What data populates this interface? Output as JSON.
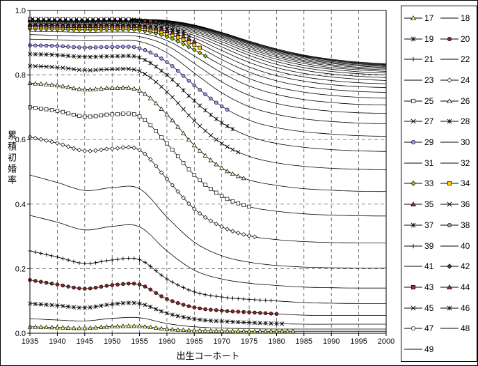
{
  "chart_data": {
    "type": "line",
    "title": "",
    "xlabel": "出生コーホート",
    "ylabel": "累積初婚率",
    "xlim": [
      1935,
      2000
    ],
    "ylim": [
      0,
      1
    ],
    "x_ticks": [
      1935,
      1940,
      1945,
      1950,
      1955,
      1960,
      1965,
      1970,
      1975,
      1980,
      1985,
      1990,
      1995,
      2000
    ],
    "y_ticks": [
      [
        "1.0",
        1.0
      ],
      [
        "0.8",
        0.8
      ],
      [
        "0.6",
        0.6
      ],
      [
        "0.4",
        0.4
      ],
      [
        "0.2",
        0.2
      ],
      [
        "0.0",
        0.0
      ]
    ],
    "grid": "dashed-both",
    "legend_position": "right",
    "line_color": "#000000",
    "cohorts": [
      1935,
      1940,
      1945,
      1950,
      1955,
      1960,
      1965,
      1970,
      1975,
      1980,
      1985,
      1990,
      1995,
      2000
    ],
    "series": [
      {
        "age": 17,
        "label": "17",
        "marker": {
          "shape": "triangle",
          "fill": "#ffff66"
        },
        "observed_until": 1983,
        "values": [
          0.02,
          0.018,
          0.016,
          0.021,
          0.022,
          0.013,
          0.009,
          0.007,
          0.006,
          0.006,
          0.006,
          0.006,
          0.006,
          0.006
        ]
      },
      {
        "age": 18,
        "label": "18",
        "marker": null,
        "observed_until": 1982,
        "values": [
          0.045,
          0.041,
          0.038,
          0.046,
          0.048,
          0.03,
          0.02,
          0.016,
          0.014,
          0.013,
          0.013,
          0.013,
          0.013,
          0.013
        ]
      },
      {
        "age": 19,
        "label": "19",
        "marker": {
          "shape": "star",
          "fill": "#000000"
        },
        "observed_until": 1981,
        "values": [
          0.092,
          0.086,
          0.079,
          0.09,
          0.092,
          0.062,
          0.044,
          0.037,
          0.033,
          0.03,
          0.028,
          0.028,
          0.028,
          0.028
        ]
      },
      {
        "age": 20,
        "label": "20",
        "marker": {
          "shape": "circle",
          "fill": "#8b2323"
        },
        "observed_until": 1980,
        "values": [
          0.165,
          0.151,
          0.138,
          0.149,
          0.151,
          0.106,
          0.08,
          0.07,
          0.065,
          0.06,
          0.056,
          0.055,
          0.055,
          0.055
        ]
      },
      {
        "age": 21,
        "label": "21",
        "marker": {
          "shape": "plus",
          "fill": "#000000"
        },
        "observed_until": 1979,
        "values": [
          0.255,
          0.236,
          0.216,
          0.227,
          0.228,
          0.168,
          0.128,
          0.112,
          0.105,
          0.1,
          0.095,
          0.093,
          0.092,
          0.092
        ]
      },
      {
        "age": 22,
        "label": "22",
        "marker": null,
        "observed_until": 1978,
        "values": [
          0.365,
          0.344,
          0.32,
          0.331,
          0.33,
          0.255,
          0.195,
          0.168,
          0.155,
          0.148,
          0.143,
          0.141,
          0.14,
          0.14
        ]
      },
      {
        "age": 23,
        "label": "23",
        "marker": null,
        "observed_until": 1977,
        "values": [
          0.49,
          0.467,
          0.442,
          0.451,
          0.448,
          0.36,
          0.282,
          0.24,
          0.22,
          0.21,
          0.205,
          0.203,
          0.202,
          0.202
        ]
      },
      {
        "age": 24,
        "label": "24",
        "marker": {
          "shape": "diamond",
          "fill": "#ffffff"
        },
        "observed_until": 1976,
        "values": [
          0.608,
          0.589,
          0.565,
          0.572,
          0.568,
          0.478,
          0.385,
          0.33,
          0.302,
          0.29,
          0.284,
          0.281,
          0.28,
          0.28
        ]
      },
      {
        "age": 25,
        "label": "25",
        "marker": {
          "shape": "square",
          "fill": "#ffffff"
        },
        "observed_until": 1975,
        "values": [
          0.7,
          0.689,
          0.671,
          0.678,
          0.672,
          0.588,
          0.49,
          0.425,
          0.392,
          0.378,
          0.37,
          0.366,
          0.364,
          0.363
        ]
      },
      {
        "age": 26,
        "label": "26",
        "marker": {
          "shape": "triangle",
          "fill": "#ffffcc"
        },
        "observed_until": 1974,
        "values": [
          0.775,
          0.768,
          0.755,
          0.76,
          0.752,
          0.678,
          0.582,
          0.512,
          0.475,
          0.458,
          0.448,
          0.443,
          0.44,
          0.439
        ]
      },
      {
        "age": 27,
        "label": "27",
        "marker": {
          "shape": "x",
          "fill": "#000000"
        },
        "observed_until": 1973,
        "values": [
          0.828,
          0.824,
          0.815,
          0.818,
          0.812,
          0.748,
          0.658,
          0.588,
          0.548,
          0.528,
          0.517,
          0.511,
          0.508,
          0.506
        ]
      },
      {
        "age": 28,
        "label": "28",
        "marker": {
          "shape": "star",
          "fill": "#000000"
        },
        "observed_until": 1972,
        "values": [
          0.865,
          0.862,
          0.856,
          0.858,
          0.854,
          0.8,
          0.72,
          0.652,
          0.61,
          0.588,
          0.576,
          0.569,
          0.565,
          0.563
        ]
      },
      {
        "age": 29,
        "label": "29",
        "marker": {
          "shape": "circle",
          "fill": "#9999ff"
        },
        "observed_until": 1971,
        "values": [
          0.892,
          0.89,
          0.885,
          0.887,
          0.883,
          0.84,
          0.768,
          0.703,
          0.66,
          0.637,
          0.624,
          0.617,
          0.612,
          0.61
        ]
      },
      {
        "age": 30,
        "label": "30",
        "marker": null,
        "observed_until": 1970,
        "values": [
          0.911,
          0.909,
          0.906,
          0.907,
          0.904,
          0.869,
          0.806,
          0.745,
          0.702,
          0.678,
          0.664,
          0.656,
          0.651,
          0.649
        ]
      },
      {
        "age": 31,
        "label": "31",
        "marker": null,
        "observed_until": 1969,
        "values": [
          0.925,
          0.923,
          0.921,
          0.922,
          0.919,
          0.891,
          0.836,
          0.779,
          0.737,
          0.712,
          0.697,
          0.688,
          0.683,
          0.681
        ]
      },
      {
        "age": 32,
        "label": "32",
        "marker": null,
        "observed_until": 1968,
        "values": [
          0.935,
          0.934,
          0.932,
          0.933,
          0.93,
          0.907,
          0.859,
          0.807,
          0.766,
          0.74,
          0.724,
          0.715,
          0.709,
          0.707
        ]
      },
      {
        "age": 33,
        "label": "33",
        "marker": {
          "shape": "diamond",
          "fill": "#99cc00"
        },
        "observed_until": 1967,
        "values": [
          0.943,
          0.942,
          0.94,
          0.941,
          0.939,
          0.919,
          0.878,
          0.83,
          0.789,
          0.763,
          0.747,
          0.737,
          0.731,
          0.728
        ]
      },
      {
        "age": 34,
        "label": "34",
        "marker": {
          "shape": "square",
          "fill": "#ffcc00"
        },
        "observed_until": 1966,
        "values": [
          0.949,
          0.948,
          0.947,
          0.948,
          0.946,
          0.929,
          0.893,
          0.848,
          0.809,
          0.782,
          0.765,
          0.755,
          0.749,
          0.746
        ]
      },
      {
        "age": 35,
        "label": "35",
        "marker": {
          "shape": "triangle",
          "fill": "#993333"
        },
        "observed_until": 1965,
        "values": [
          0.954,
          0.953,
          0.952,
          0.953,
          0.951,
          0.937,
          0.905,
          0.863,
          0.825,
          0.798,
          0.781,
          0.77,
          0.764,
          0.761
        ]
      },
      {
        "age": 36,
        "label": "36",
        "marker": {
          "shape": "x",
          "fill": "#000000"
        },
        "observed_until": 1964,
        "values": [
          0.958,
          0.957,
          0.956,
          0.957,
          0.955,
          0.943,
          0.915,
          0.876,
          0.839,
          0.812,
          0.794,
          0.783,
          0.776,
          0.773
        ]
      },
      {
        "age": 37,
        "label": "37",
        "marker": {
          "shape": "star",
          "fill": "#000000"
        },
        "observed_until": 1963,
        "values": [
          0.961,
          0.96,
          0.959,
          0.96,
          0.958,
          0.948,
          0.923,
          0.887,
          0.851,
          0.823,
          0.805,
          0.794,
          0.787,
          0.783
        ]
      },
      {
        "age": 38,
        "label": "38",
        "marker": {
          "shape": "circle",
          "fill": "#999999"
        },
        "observed_until": 1962,
        "values": [
          0.964,
          0.963,
          0.962,
          0.963,
          0.961,
          0.952,
          0.929,
          0.896,
          0.861,
          0.833,
          0.815,
          0.803,
          0.796,
          0.792
        ]
      },
      {
        "age": 39,
        "label": "39",
        "marker": {
          "shape": "plus",
          "fill": "#000000"
        },
        "observed_until": 1961,
        "values": [
          0.966,
          0.965,
          0.964,
          0.965,
          0.963,
          0.955,
          0.934,
          0.903,
          0.869,
          0.842,
          0.823,
          0.811,
          0.804,
          0.8
        ]
      },
      {
        "age": 40,
        "label": "40",
        "marker": null,
        "observed_until": 1960,
        "values": [
          0.967,
          0.966,
          0.965,
          0.966,
          0.964,
          0.958,
          0.938,
          0.909,
          0.876,
          0.849,
          0.83,
          0.818,
          0.81,
          0.806
        ]
      },
      {
        "age": 41,
        "label": "41",
        "marker": null,
        "observed_until": 1959,
        "values": [
          0.969,
          0.968,
          0.967,
          0.968,
          0.966,
          0.96,
          0.942,
          0.914,
          0.882,
          0.855,
          0.836,
          0.823,
          0.816,
          0.811
        ]
      },
      {
        "age": 42,
        "label": "42",
        "marker": {
          "shape": "diamond",
          "fill": "#404040"
        },
        "observed_until": 1958,
        "values": [
          0.97,
          0.969,
          0.968,
          0.969,
          0.967,
          0.962,
          0.945,
          0.918,
          0.887,
          0.86,
          0.841,
          0.828,
          0.82,
          0.816
        ]
      },
      {
        "age": 43,
        "label": "43",
        "marker": {
          "shape": "square",
          "fill": "#953735"
        },
        "observed_until": 1957,
        "values": [
          0.971,
          0.97,
          0.969,
          0.97,
          0.968,
          0.963,
          0.947,
          0.921,
          0.891,
          0.865,
          0.845,
          0.832,
          0.824,
          0.82
        ]
      },
      {
        "age": 44,
        "label": "44",
        "marker": {
          "shape": "triangle",
          "fill": "#953735"
        },
        "observed_until": 1956,
        "values": [
          0.972,
          0.971,
          0.97,
          0.971,
          0.969,
          0.965,
          0.949,
          0.924,
          0.895,
          0.869,
          0.849,
          0.836,
          0.828,
          0.823
        ]
      },
      {
        "age": 45,
        "label": "45",
        "marker": {
          "shape": "x",
          "fill": "#000000"
        },
        "observed_until": 1955,
        "values": [
          0.973,
          0.972,
          0.971,
          0.972,
          0.97,
          0.966,
          0.951,
          0.926,
          0.898,
          0.872,
          0.853,
          0.839,
          0.831,
          0.826
        ]
      },
      {
        "age": 46,
        "label": "46",
        "marker": {
          "shape": "star",
          "fill": "#000000"
        },
        "observed_until": 1954,
        "values": [
          0.974,
          0.973,
          0.972,
          0.973,
          0.971,
          0.967,
          0.952,
          0.928,
          0.9,
          0.875,
          0.856,
          0.842,
          0.834,
          0.829
        ]
      },
      {
        "age": 47,
        "label": "47",
        "marker": {
          "shape": "circle",
          "fill": "#ffffff"
        },
        "observed_until": 1953,
        "values": [
          0.974,
          0.973,
          0.973,
          0.974,
          0.972,
          0.968,
          0.953,
          0.93,
          0.902,
          0.877,
          0.858,
          0.845,
          0.836,
          0.831
        ]
      },
      {
        "age": 48,
        "label": "48",
        "marker": null,
        "observed_until": 1952,
        "values": [
          0.975,
          0.974,
          0.973,
          0.974,
          0.972,
          0.968,
          0.954,
          0.931,
          0.904,
          0.879,
          0.86,
          0.847,
          0.838,
          0.833
        ]
      },
      {
        "age": 49,
        "label": "49",
        "marker": null,
        "observed_until": 1951,
        "values": [
          0.975,
          0.974,
          0.974,
          0.975,
          0.973,
          0.969,
          0.955,
          0.932,
          0.905,
          0.881,
          0.862,
          0.849,
          0.84,
          0.835
        ]
      }
    ]
  }
}
